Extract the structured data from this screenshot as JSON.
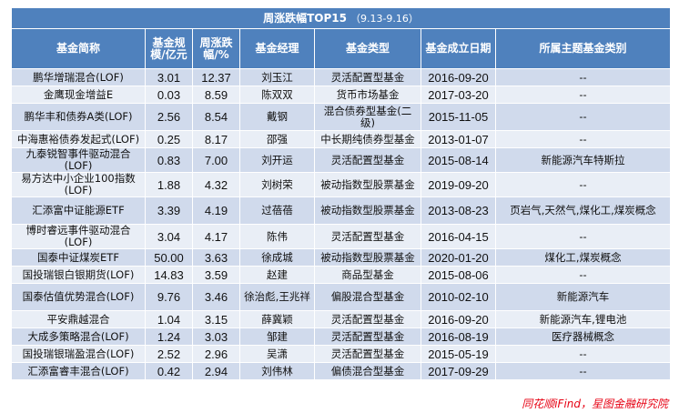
{
  "title": "周涨跌幅TOP15",
  "title_range": "（9.13-9.16）",
  "headers": [
    "基金简称",
    "基金规模/亿元",
    "周涨跌幅/%",
    "基金经理",
    "基金类型",
    "基金成立日期",
    "所属主题基金类别"
  ],
  "rows": [
    {
      "name": "鹏华增瑞混合(LOF)",
      "size": "3.01",
      "chg": "12.37",
      "manager": "刘玉江",
      "type": "灵活配置型基金",
      "date": "2016-09-20",
      "theme": "--"
    },
    {
      "name": "金鹰现金增益E",
      "size": "0.03",
      "chg": "8.59",
      "manager": "陈双双",
      "type": "货币市场基金",
      "date": "2017-03-20",
      "theme": "--"
    },
    {
      "name": "鹏华丰和债券A类(LOF)",
      "size": "2.56",
      "chg": "8.54",
      "manager": "戴钢",
      "type": "混合债券型基金(二级)",
      "date": "2015-11-05",
      "theme": "--"
    },
    {
      "name": "中海惠裕债券发起式(LOF)",
      "size": "0.25",
      "chg": "8.17",
      "manager": "邵强",
      "type": "中长期纯债券型基金",
      "date": "2013-01-07",
      "theme": "--"
    },
    {
      "name": "九泰锐智事件驱动混合(LOF)",
      "size": "0.83",
      "chg": "7.00",
      "manager": "刘开运",
      "type": "灵活配置型基金",
      "date": "2015-08-14",
      "theme": "新能源汽车特斯拉"
    },
    {
      "name": "易方达中小企业100指数(LOF)",
      "size": "1.88",
      "chg": "4.32",
      "manager": "刘树荣",
      "type": "被动指数型股票基金",
      "date": "2019-09-20",
      "theme": "--"
    },
    {
      "name": "汇添富中证能源ETF",
      "size": "3.39",
      "chg": "4.19",
      "manager": "过蓓蓓",
      "type": "被动指数型股票基金",
      "date": "2013-08-23",
      "theme": "页岩气,天然气,煤化工,煤炭概念"
    },
    {
      "name": "博时睿远事件驱动混合(LOF)",
      "size": "3.04",
      "chg": "4.17",
      "manager": "陈伟",
      "type": "灵活配置型基金",
      "date": "2016-04-15",
      "theme": "--"
    },
    {
      "name": "国泰中证煤炭ETF",
      "size": "50.00",
      "chg": "3.63",
      "manager": "徐成城",
      "type": "被动指数型股票基金",
      "date": "2020-01-20",
      "theme": "煤化工,煤炭概念"
    },
    {
      "name": "国投瑞银白银期货(LOF)",
      "size": "14.83",
      "chg": "3.59",
      "manager": "赵建",
      "type": "商品型基金",
      "date": "2015-08-06",
      "theme": "--"
    },
    {
      "name": "国泰估值优势混合(LOF)",
      "size": "9.76",
      "chg": "3.46",
      "manager": "徐治彪,王兆祥",
      "type": "偏股混合型基金",
      "date": "2010-02-10",
      "theme": "新能源汽车"
    },
    {
      "name": "平安鼎越混合",
      "size": "1.04",
      "chg": "3.15",
      "manager": "薛冀颖",
      "type": "灵活配置型基金",
      "date": "2016-09-20",
      "theme": "新能源汽车,锂电池"
    },
    {
      "name": "大成多策略混合(LOF)",
      "size": "1.24",
      "chg": "3.03",
      "manager": "邹建",
      "type": "灵活配置型基金",
      "date": "2016-08-19",
      "theme": "医疗器械概念"
    },
    {
      "name": "国投瑞银瑞盈混合(LOF)",
      "size": "2.52",
      "chg": "2.96",
      "manager": "吴潇",
      "type": "灵活配置型基金",
      "date": "2015-05-19",
      "theme": "--"
    },
    {
      "name": "汇添富睿丰混合(LOF)",
      "size": "0.42",
      "chg": "2.94",
      "manager": "刘伟林",
      "type": "偏债混合型基金",
      "date": "2017-09-29",
      "theme": "--"
    }
  ],
  "source": "同花顺iFind，星图金融研究院"
}
